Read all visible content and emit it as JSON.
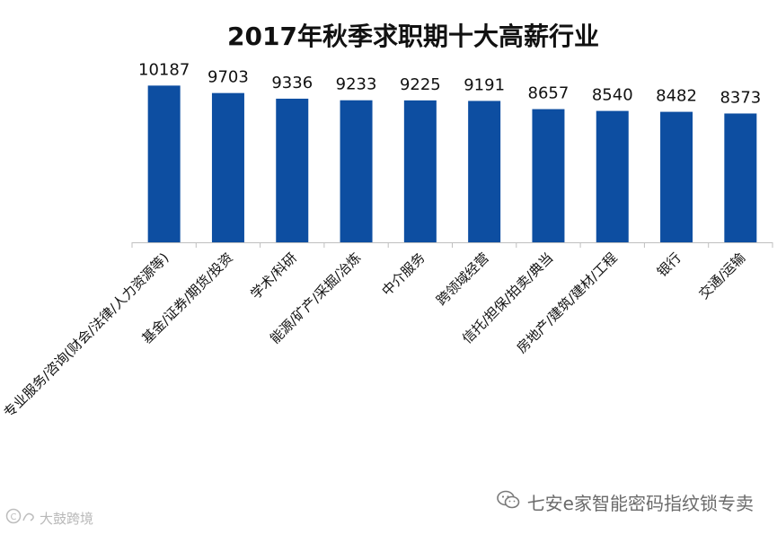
{
  "chart_data": {
    "type": "bar",
    "title": "2017年秋季求职期十大高薪行业",
    "categories": [
      "专业服务/咨询(财会/法律/人力资源等)",
      "基金/证券/期货/投资",
      "学术/科研",
      "能源/矿产/采掘/冶炼",
      "中介服务",
      "跨领域经营",
      "信托/担保/拍卖/典当",
      "房地产/建筑/建材/工程",
      "银行",
      "交通/运输"
    ],
    "values": [
      10187,
      9703,
      9336,
      9233,
      9225,
      9191,
      8657,
      8540,
      8482,
      8373
    ],
    "ylim": [
      0,
      10500
    ],
    "grid": false,
    "bar_color": "#0d4ea1",
    "axis_color": "#bfbfbf"
  },
  "watermarks": {
    "right_text": "七安e家智能密码指纹锁专卖",
    "left_text": "大鼓跨境"
  }
}
